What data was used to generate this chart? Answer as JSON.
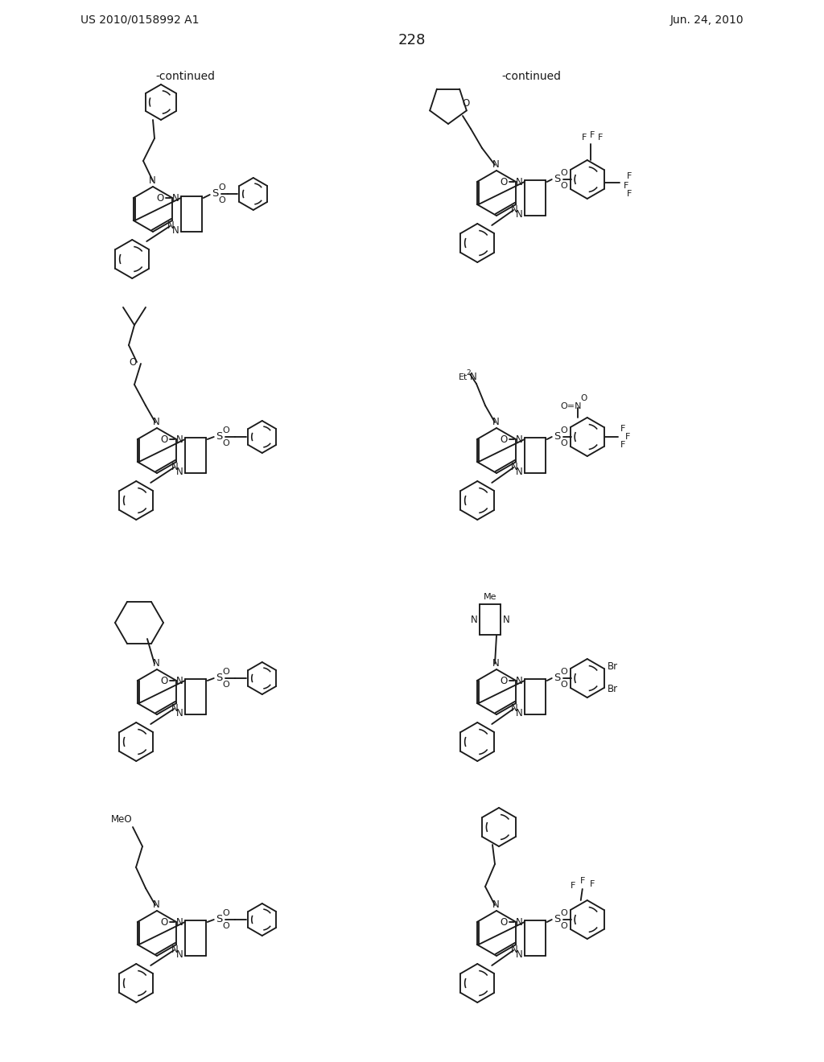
{
  "patent_number": "US 2010/0158992 A1",
  "patent_date": "Jun. 24, 2010",
  "page_number": "228",
  "continued": "-continued",
  "bg_color": "#ffffff",
  "line_color": "#1a1a1a",
  "text_color": "#1a1a1a"
}
